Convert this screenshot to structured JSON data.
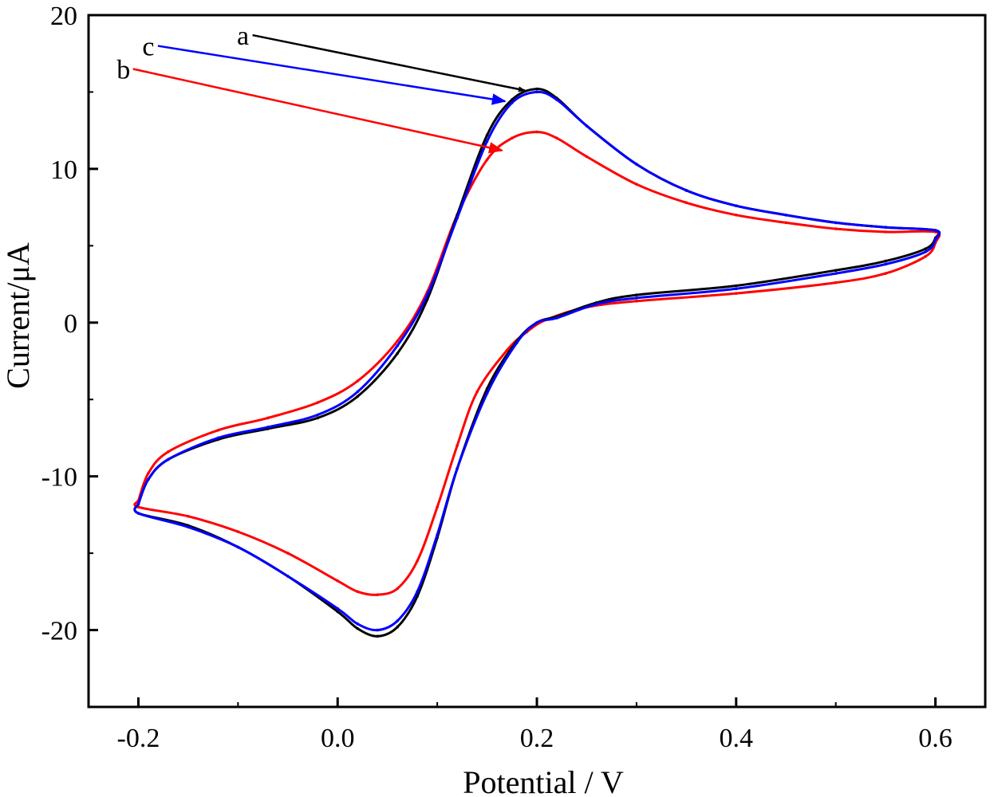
{
  "chart_data": {
    "type": "line",
    "title": "",
    "xlabel": "Potential / V",
    "ylabel": "Current/μA",
    "xlim": [
      -0.25,
      0.65
    ],
    "ylim": [
      -25,
      20
    ],
    "xticks": [
      -0.2,
      0.0,
      0.2,
      0.4,
      0.6
    ],
    "xtick_labels": [
      "-0.2",
      "0.0",
      "0.2",
      "0.4",
      "0.6"
    ],
    "yticks": [
      -20,
      -10,
      0,
      10,
      20
    ],
    "ytick_labels": [
      "-20",
      "-10",
      "0",
      "10",
      "20"
    ],
    "grid": false,
    "series": [
      {
        "name": "a",
        "color": "#000000",
        "x": [
          -0.2,
          -0.19,
          -0.17,
          -0.12,
          -0.07,
          -0.02,
          0.02,
          0.06,
          0.09,
          0.12,
          0.15,
          0.175,
          0.2,
          0.22,
          0.25,
          0.3,
          0.35,
          0.4,
          0.45,
          0.5,
          0.55,
          0.6,
          0.6,
          0.59,
          0.55,
          0.5,
          0.4,
          0.3,
          0.26,
          0.22,
          0.2,
          0.18,
          0.15,
          0.12,
          0.1,
          0.08,
          0.06,
          0.04,
          0.02,
          0.0,
          -0.05,
          -0.1,
          -0.15,
          -0.2,
          -0.2
        ],
        "y": [
          -11.8,
          -10.2,
          -8.9,
          -7.6,
          -6.9,
          -6.2,
          -4.8,
          -2.0,
          1.5,
          7.0,
          12.2,
          14.5,
          15.2,
          14.6,
          12.8,
          10.3,
          8.6,
          7.6,
          7.0,
          6.5,
          6.2,
          6.0,
          5.5,
          4.8,
          4.0,
          3.4,
          2.4,
          1.8,
          1.3,
          0.4,
          0.0,
          -1.2,
          -4.3,
          -9.5,
          -14.0,
          -17.8,
          -19.8,
          -20.4,
          -19.9,
          -18.8,
          -16.5,
          -14.6,
          -13.2,
          -12.4,
          -11.8
        ]
      },
      {
        "name": "b",
        "color": "#ff0000",
        "x": [
          -0.2,
          -0.19,
          -0.17,
          -0.12,
          -0.07,
          -0.02,
          0.02,
          0.06,
          0.09,
          0.12,
          0.15,
          0.175,
          0.2,
          0.22,
          0.25,
          0.3,
          0.35,
          0.4,
          0.45,
          0.5,
          0.55,
          0.6,
          0.6,
          0.59,
          0.55,
          0.5,
          0.4,
          0.3,
          0.25,
          0.21,
          0.19,
          0.17,
          0.14,
          0.12,
          0.1,
          0.08,
          0.06,
          0.04,
          0.02,
          0.0,
          -0.05,
          -0.1,
          -0.15,
          -0.2,
          -0.2
        ],
        "y": [
          -11.6,
          -9.8,
          -8.4,
          -7.0,
          -6.2,
          -5.2,
          -3.8,
          -1.2,
          2.0,
          7.0,
          10.6,
          12.0,
          12.4,
          12.0,
          10.8,
          9.0,
          7.8,
          7.0,
          6.5,
          6.1,
          5.9,
          5.9,
          5.2,
          4.3,
          3.2,
          2.6,
          1.9,
          1.4,
          1.0,
          0.2,
          -0.6,
          -1.8,
          -4.5,
          -8.0,
          -12.0,
          -15.5,
          -17.3,
          -17.7,
          -17.5,
          -16.8,
          -15.0,
          -13.6,
          -12.6,
          -12.0,
          -11.6
        ]
      },
      {
        "name": "c",
        "color": "#0000ff",
        "x": [
          -0.2,
          -0.19,
          -0.17,
          -0.12,
          -0.07,
          -0.02,
          0.02,
          0.06,
          0.09,
          0.12,
          0.15,
          0.175,
          0.2,
          0.22,
          0.25,
          0.3,
          0.35,
          0.4,
          0.45,
          0.5,
          0.55,
          0.6,
          0.6,
          0.59,
          0.55,
          0.5,
          0.4,
          0.3,
          0.26,
          0.22,
          0.2,
          0.18,
          0.15,
          0.12,
          0.1,
          0.08,
          0.06,
          0.04,
          0.02,
          0.0,
          -0.05,
          -0.1,
          -0.15,
          -0.2,
          -0.2
        ],
        "y": [
          -11.8,
          -10.2,
          -8.9,
          -7.5,
          -6.8,
          -6.0,
          -4.5,
          -1.5,
          1.8,
          6.8,
          11.8,
          14.3,
          15.0,
          14.5,
          12.8,
          10.3,
          8.6,
          7.6,
          7.0,
          6.5,
          6.2,
          6.0,
          5.4,
          4.6,
          3.8,
          3.2,
          2.2,
          1.6,
          1.2,
          0.3,
          0.0,
          -1.3,
          -4.6,
          -9.5,
          -13.8,
          -17.5,
          -19.4,
          -20.0,
          -19.6,
          -18.6,
          -16.5,
          -14.6,
          -13.3,
          -12.4,
          -11.8
        ]
      }
    ],
    "annotations": [
      {
        "text": "a",
        "series": "a",
        "label_xy": [
          -0.095,
          18.7
        ],
        "arrow_to": [
          0.188,
          15.1
        ]
      },
      {
        "text": "c",
        "series": "c",
        "label_xy": [
          -0.19,
          18.0
        ],
        "arrow_to": [
          0.168,
          14.4
        ]
      },
      {
        "text": "b",
        "series": "b",
        "label_xy": [
          -0.215,
          16.5
        ],
        "arrow_to": [
          0.165,
          11.2
        ]
      }
    ]
  }
}
